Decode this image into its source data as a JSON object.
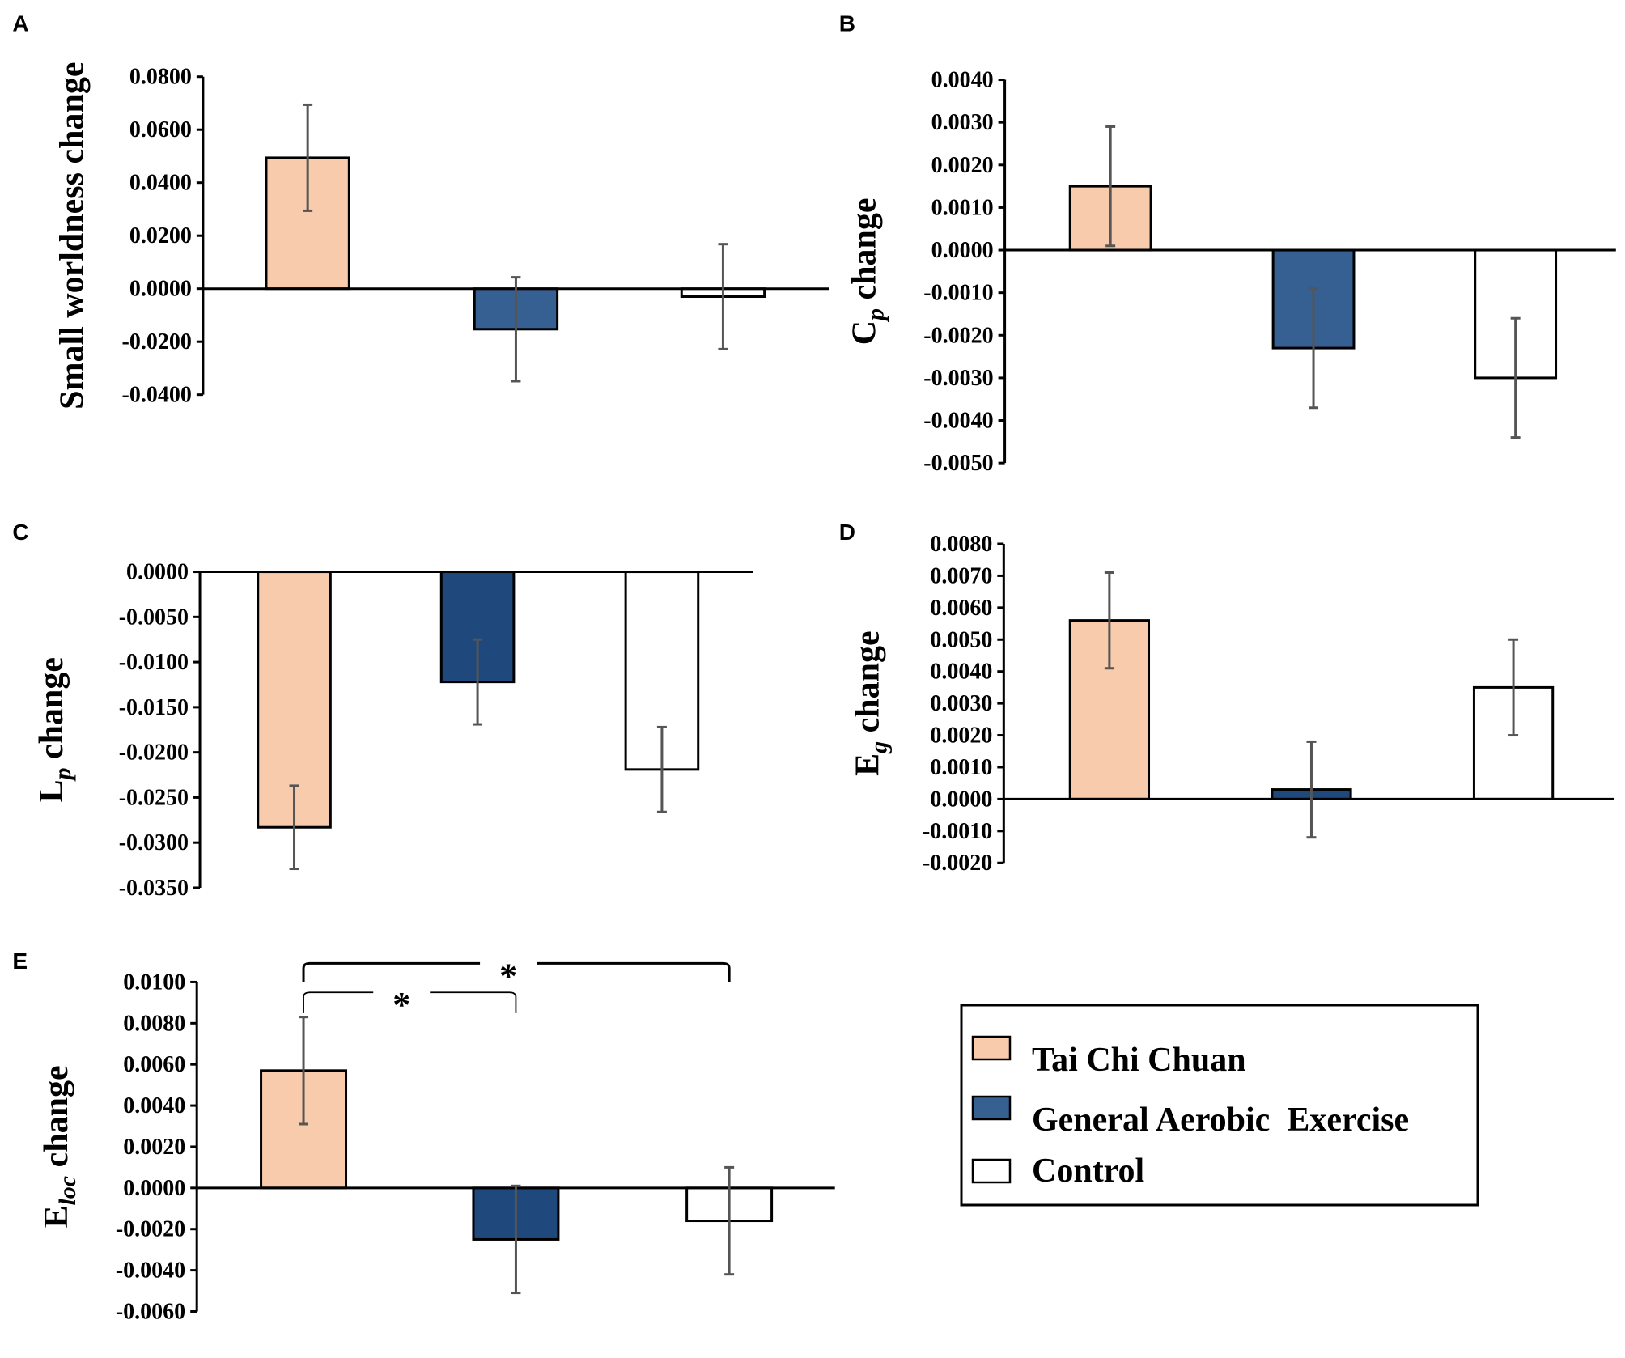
{
  "legend": [
    {
      "label": "Tai Chi Chuan",
      "color": "#F8CBAD"
    },
    {
      "label": "General Aerobic  Exercise",
      "color": "#376092"
    },
    {
      "label": "Control",
      "color": "#FFFFFF"
    }
  ],
  "chart_data": [
    {
      "panel": "A",
      "type": "bar",
      "ylabel": {
        "main": "Small worldness change",
        "sub": "",
        "rest": ""
      },
      "ylim": [
        -0.04,
        0.08
      ],
      "ticks": [
        "0.0800",
        "0.0600",
        "0.0400",
        "0.0200",
        "0.0000",
        "-0.0200",
        "-0.0400"
      ],
      "categories": [
        "Tai Chi Chuan",
        "General Aerobic Exercise",
        "Control"
      ],
      "colors": [
        "#F8CBAD",
        "#376092",
        "#FFFFFF"
      ],
      "values": [
        0.0494,
        -0.0153,
        -0.003
      ],
      "errors": [
        0.02,
        0.0196,
        0.0198
      ]
    },
    {
      "panel": "B",
      "type": "bar",
      "ylabel": {
        "main": "C",
        "sub": "p",
        "rest": " change"
      },
      "ylim": [
        -0.005,
        0.004
      ],
      "ticks": [
        "0.0040",
        "0.0030",
        "0.0020",
        "0.0010",
        "0.0000",
        "-0.0010",
        "-0.0020",
        "-0.0030",
        "-0.0040",
        "-0.0050"
      ],
      "categories": [
        "Tai Chi Chuan",
        "General Aerobic Exercise",
        "Control"
      ],
      "colors": [
        "#F8CBAD",
        "#376092",
        "#FFFFFF"
      ],
      "values": [
        0.0015,
        -0.0023,
        -0.003
      ],
      "errors": [
        0.0014,
        0.0014,
        0.0014
      ]
    },
    {
      "panel": "C",
      "type": "bar",
      "ylabel": {
        "main": "L",
        "sub": "p",
        "rest": " change"
      },
      "ylim": [
        -0.035,
        0.0
      ],
      "ticks": [
        "0.0000",
        "-0.0050",
        "-0.0100",
        "-0.0150",
        "-0.0200",
        "-0.0250",
        "-0.0300",
        "-0.0350"
      ],
      "categories": [
        "Tai Chi Chuan",
        "General Aerobic Exercise",
        "Control"
      ],
      "colors": [
        "#F8CBAD",
        "#1F497D",
        "#FFFFFF"
      ],
      "values": [
        -0.0283,
        -0.0122,
        -0.0219
      ],
      "errors": [
        0.0046,
        0.0047,
        0.0047
      ]
    },
    {
      "panel": "D",
      "type": "bar",
      "ylabel": {
        "main": "E",
        "sub": "g",
        "rest": " change"
      },
      "ylim": [
        -0.002,
        0.008
      ],
      "ticks": [
        "0.0080",
        "0.0070",
        "0.0060",
        "0.0050",
        "0.0040",
        "0.0030",
        "0.0020",
        "0.0010",
        "0.0000",
        "-0.0010",
        "-0.0020"
      ],
      "categories": [
        "Tai Chi Chuan",
        "General Aerobic Exercise",
        "Control"
      ],
      "colors": [
        "#F8CBAD",
        "#1F497D",
        "#FFFFFF"
      ],
      "values": [
        0.0056,
        0.0003,
        0.0035
      ],
      "errors": [
        0.0015,
        0.0015,
        0.0015
      ]
    },
    {
      "panel": "E",
      "type": "bar",
      "ylabel": {
        "main": "E",
        "sub": "loc",
        "rest": " change"
      },
      "ylim": [
        -0.006,
        0.01
      ],
      "ticks": [
        "0.0100",
        "0.0080",
        "0.0060",
        "0.0040",
        "0.0020",
        "0.0000",
        "-0.0020",
        "-0.0040",
        "-0.0060"
      ],
      "categories": [
        "Tai Chi Chuan",
        "General Aerobic Exercise",
        "Control"
      ],
      "colors": [
        "#F8CBAD",
        "#1F497D",
        "#FFFFFF"
      ],
      "values": [
        0.0057,
        -0.0025,
        -0.0016
      ],
      "errors": [
        0.0026,
        0.0026,
        0.0026
      ],
      "significance": [
        {
          "from": 0,
          "to": 2,
          "label": "*"
        },
        {
          "from": 0,
          "to": 1,
          "label": "*"
        }
      ]
    }
  ]
}
